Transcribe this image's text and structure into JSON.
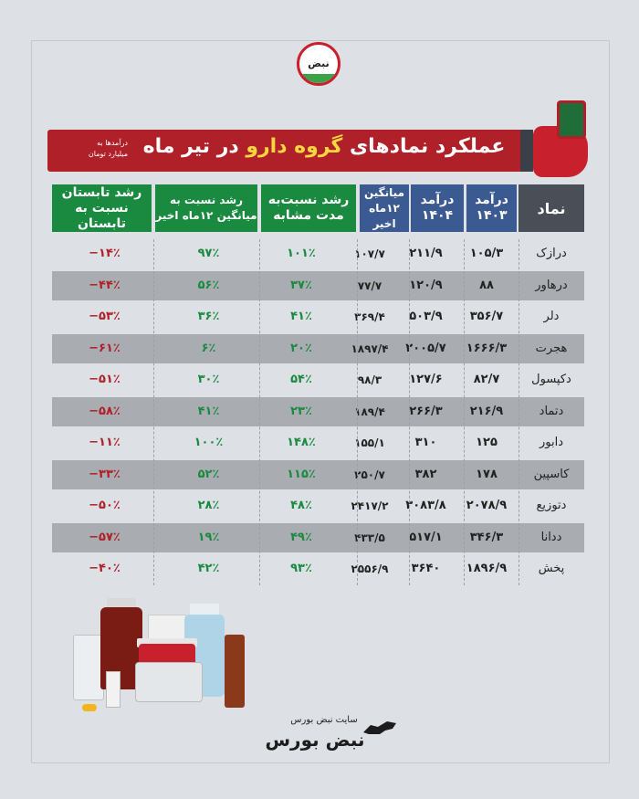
{
  "logo": {
    "text": "نبض بورس"
  },
  "banner": {
    "title_prefix": "عملکرد نمادهای ",
    "title_highlight": "گروه دارو",
    "title_suffix": " در تیر ماه",
    "subtitle": "درآمدها به\nمیلیارد تومان"
  },
  "table": {
    "headers": {
      "name": "نماد",
      "rev1403": "درآمد\n۱۴۰۳",
      "rev1404": "درآمد\n۱۴۰۴",
      "avg": "میانگین\n۱۲ماه اخیر",
      "growth_same": "رشد نسبت‌به\nمدت مشابه",
      "growth_avg": "رشد نسبت به\nمیانگین ۱۲ماه اخیر",
      "growth_summer": "رشد تابستان\nنسبت به تابستان"
    },
    "rows": [
      {
        "name": "درازک",
        "rev1403": "۱۰۵/۳",
        "rev1404": "۲۱۱/۹",
        "avg": "۱۰۷/۷",
        "growth_same": "۱۰۱٪",
        "growth_avg": "۹۷٪",
        "growth_summer": "−۱۴٪"
      },
      {
        "name": "درهاور",
        "rev1403": "۸۸",
        "rev1404": "۱۲۰/۹",
        "avg": "۷۷/۷",
        "growth_same": "۳۷٪",
        "growth_avg": "۵۶٪",
        "growth_summer": "−۴۴٪"
      },
      {
        "name": "دلر",
        "rev1403": "۳۵۶/۷",
        "rev1404": "۵۰۳/۹",
        "avg": "۳۶۹/۴",
        "growth_same": "۴۱٪",
        "growth_avg": "۳۶٪",
        "growth_summer": "−۵۳٪"
      },
      {
        "name": "هجرت",
        "rev1403": "۱۶۶۶/۳",
        "rev1404": "۲۰۰۵/۷",
        "avg": "۱۸۹۷/۴",
        "growth_same": "۲۰٪",
        "growth_avg": "۶٪",
        "growth_summer": "−۶۱٪"
      },
      {
        "name": "دکپسول",
        "rev1403": "۸۲/۷",
        "rev1404": "۱۲۷/۶",
        "avg": "۹۸/۳",
        "growth_same": "۵۴٪",
        "growth_avg": "۳۰٪",
        "growth_summer": "−۵۱٪"
      },
      {
        "name": "دتماد",
        "rev1403": "۲۱۶/۹",
        "rev1404": "۲۶۶/۳",
        "avg": "۱۸۹/۴",
        "growth_same": "۲۳٪",
        "growth_avg": "۴۱٪",
        "growth_summer": "−۵۸٪"
      },
      {
        "name": "دابور",
        "rev1403": "۱۲۵",
        "rev1404": "۳۱۰",
        "avg": "۱۵۵/۱",
        "growth_same": "۱۴۸٪",
        "growth_avg": "۱۰۰٪",
        "growth_summer": "−۱۱٪"
      },
      {
        "name": "کاسپین",
        "rev1403": "۱۷۸",
        "rev1404": "۳۸۲",
        "avg": "۲۵۰/۷",
        "growth_same": "۱۱۵٪",
        "growth_avg": "۵۲٪",
        "growth_summer": "−۳۳٪"
      },
      {
        "name": "دتوزیع",
        "rev1403": "۲۰۷۸/۹",
        "rev1404": "۳۰۸۳/۸",
        "avg": "۲۴۱۷/۲",
        "growth_same": "۴۸٪",
        "growth_avg": "۲۸٪",
        "growth_summer": "−۵۰٪"
      },
      {
        "name": "ددانا",
        "rev1403": "۳۴۶/۳",
        "rev1404": "۵۱۷/۱",
        "avg": "۴۳۳/۵",
        "growth_same": "۴۹٪",
        "growth_avg": "۱۹٪",
        "growth_summer": "−۵۷٪"
      },
      {
        "name": "پخش",
        "rev1403": "۱۸۹۶/۹",
        "rev1404": "۳۶۴۰",
        "avg": "۲۵۵۶/۹",
        "growth_same": "۹۳٪",
        "growth_avg": "۴۲٪",
        "growth_summer": "−۴۰٪"
      }
    ]
  },
  "footer": {
    "site_label": "سایت نبض بورس",
    "brand": "نبض بورس"
  },
  "colors": {
    "red": "#b02029",
    "green": "#198a3f",
    "blue": "#3b5a92",
    "shade": "#a9acb1",
    "bg": "#dde0e4"
  }
}
